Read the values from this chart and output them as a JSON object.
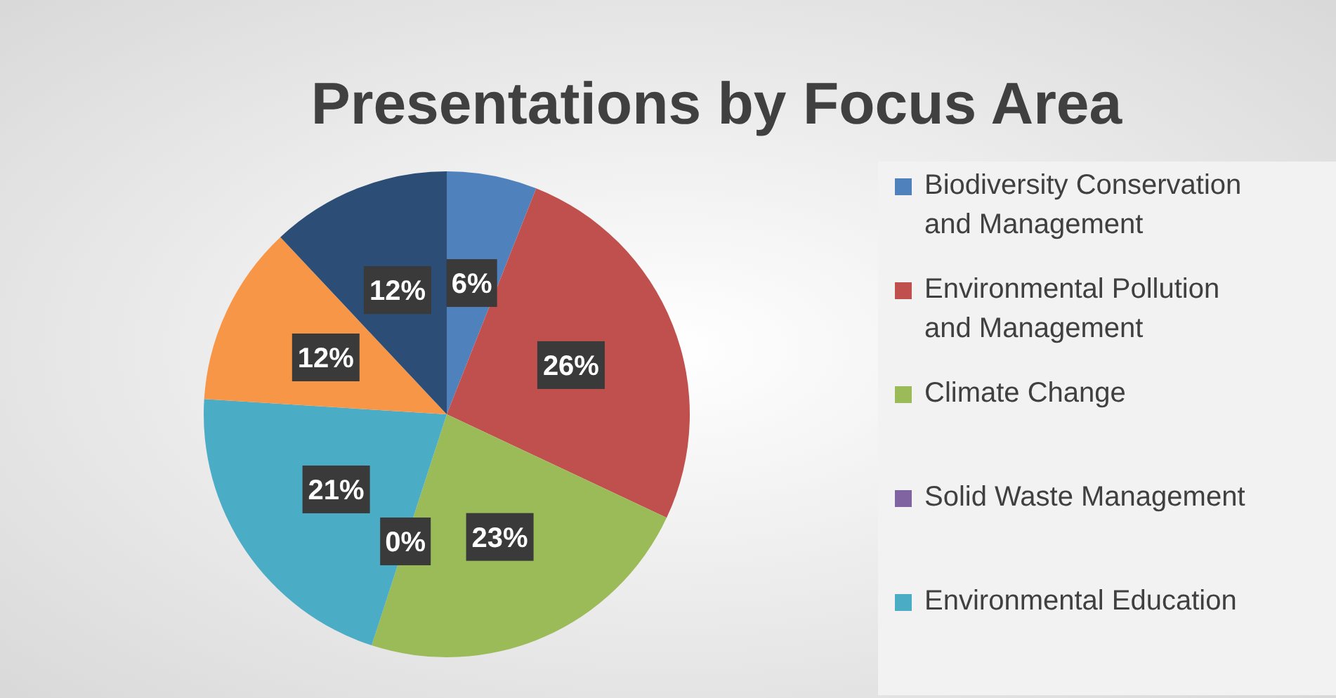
{
  "chart_data": {
    "type": "pie",
    "title": "Presentations by Focus Area",
    "categories": [
      "Biodiversity Conservation and Management",
      "Environmental Pollution and Management",
      "Climate Change",
      "Solid Waste Management",
      "Environmental Education",
      null,
      null
    ],
    "values": [
      6,
      26,
      23,
      0,
      21,
      12,
      12
    ],
    "colors": [
      "#4f81bd",
      "#c0504d",
      "#9bbb59",
      "#8064a2",
      "#4bacc6",
      "#f79646",
      "#2c4d75"
    ],
    "value_labels": [
      "6%",
      "26%",
      "23%",
      "0%",
      "21%",
      "12%",
      "12%"
    ],
    "legend": "right"
  }
}
